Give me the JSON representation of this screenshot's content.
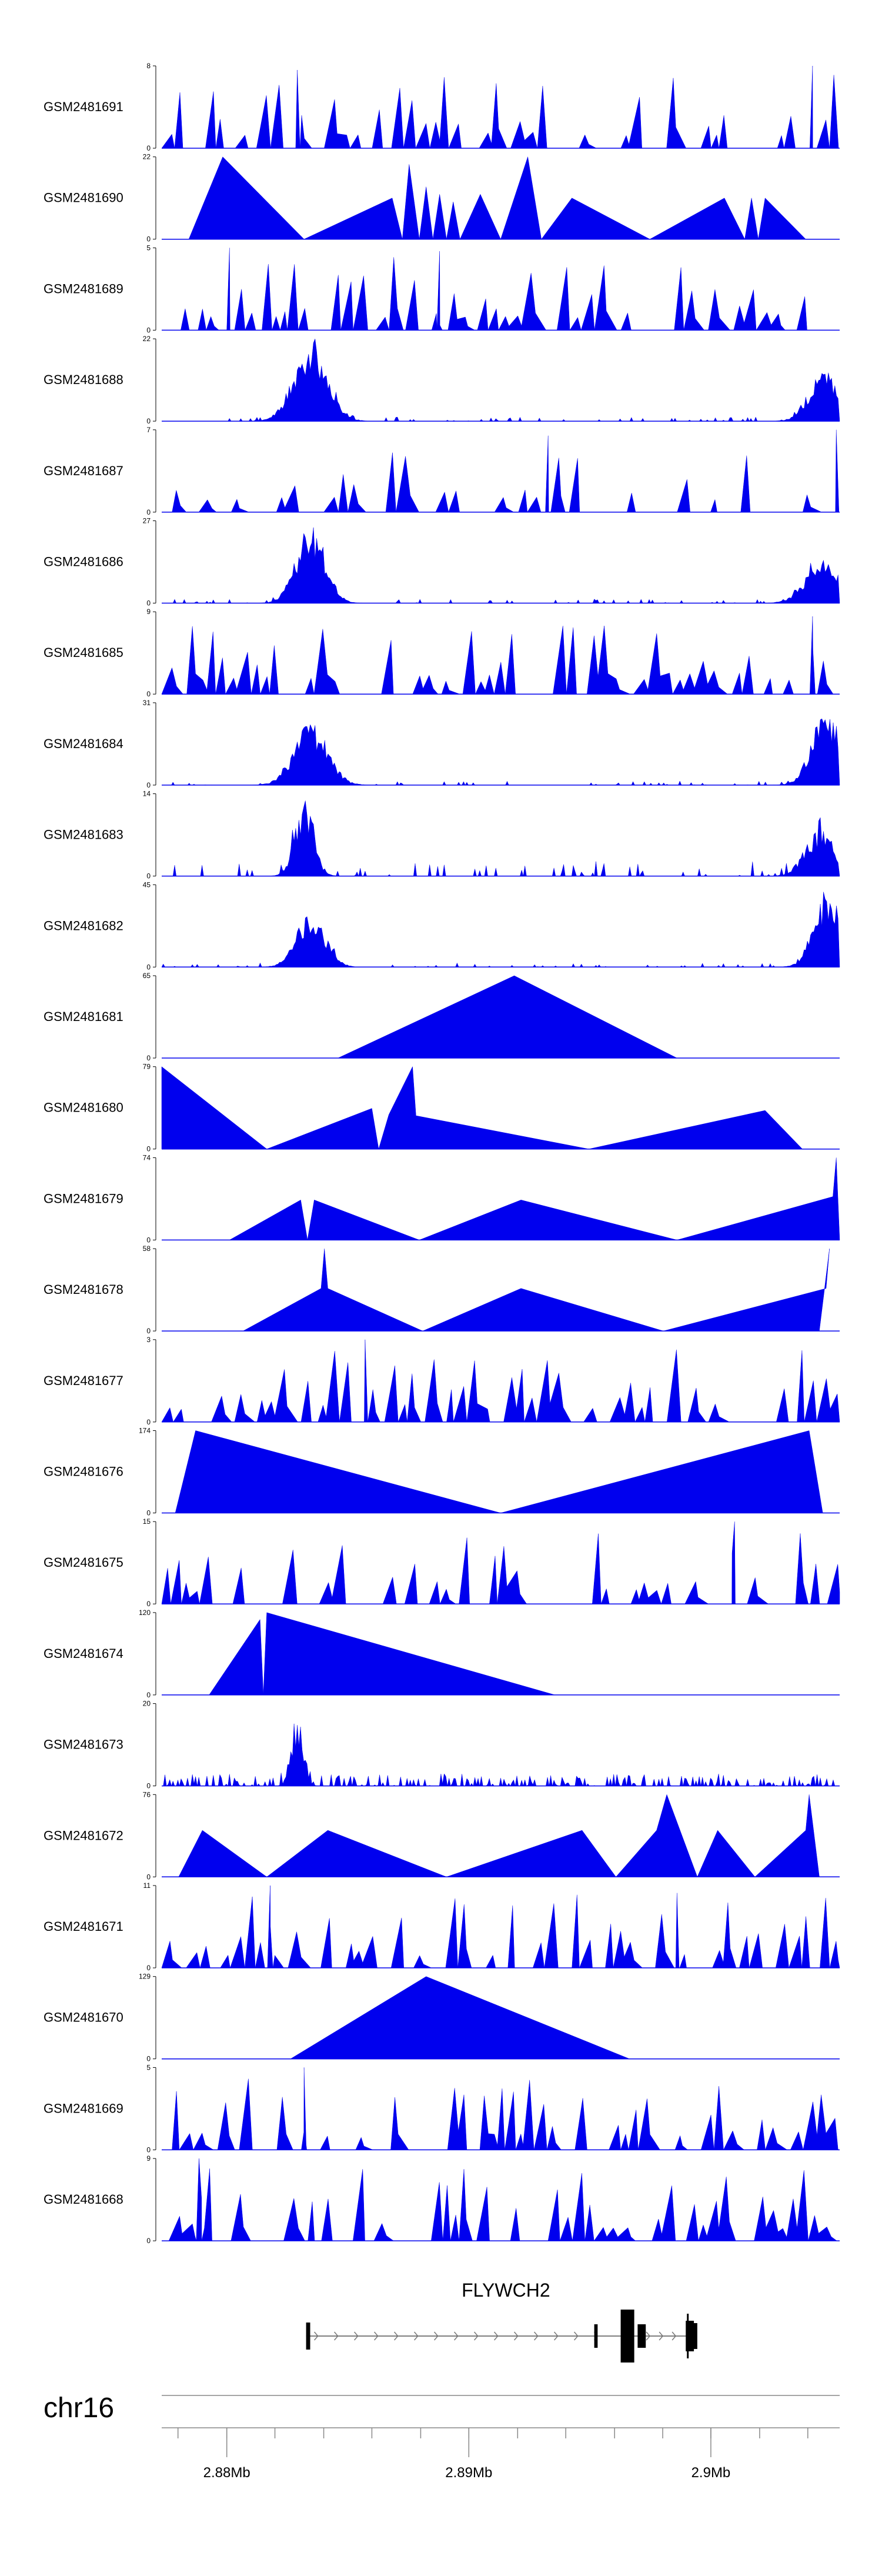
{
  "chart_data": {
    "type": "area",
    "title": "",
    "color": "#0000EE",
    "tracks": [
      {
        "name": "GSM2481691",
        "ymax": 8,
        "seed": 11,
        "profile": "spiky",
        "density": 0.45,
        "peaks": [
          [
            0.2,
            7.6
          ],
          [
            0.96,
            8
          ]
        ]
      },
      {
        "name": "GSM2481690",
        "ymax": 22,
        "seed": 12,
        "profile": "tri",
        "points": [
          [
            0.04,
            0
          ],
          [
            0.09,
            22
          ],
          [
            0.21,
            0
          ],
          [
            0.34,
            11
          ],
          [
            0.355,
            0
          ],
          [
            0.365,
            20
          ],
          [
            0.38,
            0
          ],
          [
            0.39,
            14
          ],
          [
            0.4,
            0
          ],
          [
            0.41,
            12
          ],
          [
            0.42,
            0
          ],
          [
            0.43,
            10
          ],
          [
            0.44,
            0
          ],
          [
            0.47,
            12
          ],
          [
            0.5,
            0
          ],
          [
            0.54,
            22
          ],
          [
            0.56,
            0
          ],
          [
            0.605,
            11
          ],
          [
            0.72,
            0
          ],
          [
            0.83,
            11
          ],
          [
            0.86,
            0
          ],
          [
            0.87,
            11
          ],
          [
            0.88,
            0
          ],
          [
            0.89,
            11
          ],
          [
            0.95,
            0
          ]
        ]
      },
      {
        "name": "GSM2481689",
        "ymax": 5,
        "seed": 13,
        "profile": "spiky",
        "density": 0.55,
        "peaks": [
          [
            0.1,
            5
          ],
          [
            0.41,
            4.8
          ]
        ]
      },
      {
        "name": "GSM2481688",
        "ymax": 22,
        "seed": 14,
        "profile": "hotspot",
        "hot": [
          [
            0.22,
            0.035,
            22
          ],
          [
            0.975,
            0.03,
            14
          ]
        ]
      },
      {
        "name": "GSM2481687",
        "ymax": 7,
        "seed": 15,
        "profile": "spiky",
        "density": 0.45,
        "peaks": [
          [
            0.57,
            6.5
          ],
          [
            0.995,
            7
          ]
        ]
      },
      {
        "name": "GSM2481686",
        "ymax": 27,
        "seed": 16,
        "profile": "hotspot",
        "hot": [
          [
            0.22,
            0.03,
            27
          ],
          [
            0.975,
            0.035,
            16
          ]
        ]
      },
      {
        "name": "GSM2481685",
        "ymax": 9,
        "seed": 17,
        "profile": "spiky",
        "density": 0.5,
        "peaks": [
          [
            0.96,
            8.5
          ]
        ]
      },
      {
        "name": "GSM2481684",
        "ymax": 31,
        "seed": 18,
        "profile": "hotspot",
        "hot": [
          [
            0.22,
            0.035,
            24
          ],
          [
            0.98,
            0.03,
            29
          ]
        ]
      },
      {
        "name": "GSM2481683",
        "ymax": 14,
        "seed": 19,
        "profile": "hotspot",
        "hot": [
          [
            0.21,
            0.02,
            13
          ],
          [
            0.97,
            0.03,
            8
          ]
        ],
        "noise": 2.5
      },
      {
        "name": "GSM2481682",
        "ymax": 45,
        "seed": 20,
        "profile": "hotspot",
        "hot": [
          [
            0.22,
            0.03,
            32
          ],
          [
            0.985,
            0.03,
            45
          ]
        ]
      },
      {
        "name": "GSM2481681",
        "ymax": 65,
        "seed": 21,
        "profile": "tri",
        "points": [
          [
            0.26,
            0
          ],
          [
            0.52,
            65
          ],
          [
            0.76,
            0
          ]
        ]
      },
      {
        "name": "GSM2481680",
        "ymax": 79,
        "seed": 22,
        "profile": "tri",
        "points": [
          [
            0.0,
            0
          ],
          [
            0.0,
            79
          ],
          [
            0.155,
            0
          ],
          [
            0.31,
            39
          ],
          [
            0.32,
            0
          ],
          [
            0.335,
            33
          ],
          [
            0.37,
            79
          ],
          [
            0.375,
            32
          ],
          [
            0.63,
            0
          ],
          [
            0.89,
            37
          ],
          [
            0.945,
            0
          ]
        ]
      },
      {
        "name": "GSM2481679",
        "ymax": 74,
        "seed": 23,
        "profile": "tri",
        "points": [
          [
            0.1,
            0
          ],
          [
            0.205,
            36
          ],
          [
            0.215,
            0
          ],
          [
            0.225,
            36
          ],
          [
            0.38,
            0
          ],
          [
            0.53,
            36
          ],
          [
            0.76,
            0
          ],
          [
            0.99,
            39
          ],
          [
            0.995,
            74
          ],
          [
            1.0,
            0
          ]
        ]
      },
      {
        "name": "GSM2481678",
        "ymax": 58,
        "seed": 24,
        "profile": "tri",
        "points": [
          [
            0.12,
            0
          ],
          [
            0.235,
            30
          ],
          [
            0.24,
            58
          ],
          [
            0.245,
            30
          ],
          [
            0.385,
            0
          ],
          [
            0.53,
            30
          ],
          [
            0.74,
            0
          ],
          [
            0.98,
            30
          ],
          [
            0.985,
            58
          ],
          [
            0.97,
            0
          ]
        ]
      },
      {
        "name": "GSM2481677",
        "ymax": 3,
        "seed": 25,
        "profile": "spiky",
        "density": 0.6,
        "peaks": [
          [
            0.3,
            3
          ]
        ]
      },
      {
        "name": "GSM2481676",
        "ymax": 174,
        "seed": 26,
        "profile": "tri",
        "points": [
          [
            0.02,
            0
          ],
          [
            0.05,
            174
          ],
          [
            0.5,
            0
          ],
          [
            0.955,
            174
          ],
          [
            0.975,
            0
          ]
        ]
      },
      {
        "name": "GSM2481675",
        "ymax": 15,
        "seed": 27,
        "profile": "spiky",
        "density": 0.45,
        "peaks": [
          [
            0.845,
            15
          ]
        ]
      },
      {
        "name": "GSM2481674",
        "ymax": 120,
        "seed": 28,
        "profile": "tri",
        "points": [
          [
            0.07,
            0
          ],
          [
            0.145,
            110
          ],
          [
            0.15,
            0
          ],
          [
            0.155,
            120
          ],
          [
            0.58,
            0
          ]
        ]
      },
      {
        "name": "GSM2481673",
        "ymax": 20,
        "seed": 29,
        "profile": "hotspot",
        "hot": [
          [
            0.2,
            0.012,
            17
          ]
        ],
        "noise": 3,
        "spread": 0.45
      },
      {
        "name": "GSM2481672",
        "ymax": 76,
        "seed": 30,
        "profile": "tri",
        "points": [
          [
            0.025,
            0
          ],
          [
            0.06,
            43
          ],
          [
            0.155,
            0
          ],
          [
            0.245,
            43
          ],
          [
            0.42,
            0
          ],
          [
            0.62,
            43
          ],
          [
            0.67,
            0
          ],
          [
            0.73,
            43
          ],
          [
            0.745,
            76
          ],
          [
            0.79,
            0
          ],
          [
            0.82,
            43
          ],
          [
            0.875,
            0
          ],
          [
            0.95,
            43
          ],
          [
            0.955,
            76
          ],
          [
            0.97,
            0
          ]
        ]
      },
      {
        "name": "GSM2481671",
        "ymax": 11,
        "seed": 31,
        "profile": "spiky",
        "density": 0.55,
        "peaks": [
          [
            0.16,
            11
          ],
          [
            0.76,
            10
          ]
        ]
      },
      {
        "name": "GSM2481670",
        "ymax": 129,
        "seed": 32,
        "profile": "tri",
        "points": [
          [
            0.19,
            0
          ],
          [
            0.39,
            129
          ],
          [
            0.69,
            0
          ]
        ]
      },
      {
        "name": "GSM2481669",
        "ymax": 5,
        "seed": 33,
        "profile": "spiky",
        "density": 0.5,
        "peaks": [
          [
            0.21,
            5
          ]
        ]
      },
      {
        "name": "GSM2481668",
        "ymax": 9,
        "seed": 34,
        "profile": "spiky",
        "density": 0.55,
        "peaks": [
          [
            0.055,
            9
          ]
        ]
      }
    ],
    "gene": {
      "name": "FLYWCH2",
      "start": 0.213,
      "end": 0.785
    },
    "chromosome": "chr16",
    "ticks": [
      {
        "label": "2.88Mb",
        "pos": 0.096
      },
      {
        "label": "2.89Mb",
        "pos": 0.453
      },
      {
        "label": "2.9Mb",
        "pos": 0.81
      }
    ],
    "minor_ticks": [
      0.024,
      0.096,
      0.167,
      0.239,
      0.31,
      0.382,
      0.453,
      0.525,
      0.596,
      0.668,
      0.739,
      0.81,
      0.882,
      0.953
    ]
  }
}
